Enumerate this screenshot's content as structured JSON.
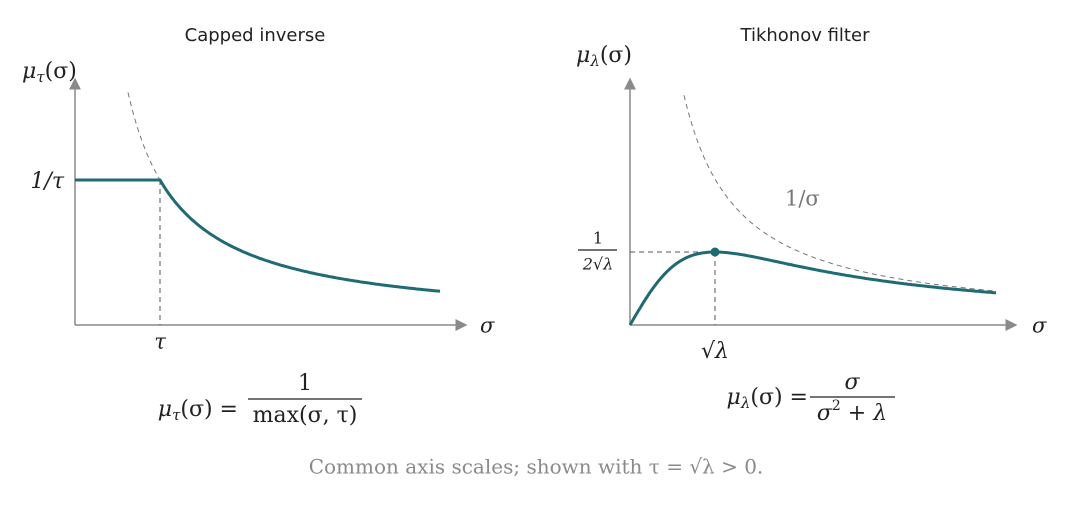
{
  "panels": [
    {
      "title": "Capped inverse",
      "y_label": {
        "base": "μ",
        "sub": "τ",
        "arg": "(σ)"
      },
      "x_label": "σ",
      "y_tick": "1/τ",
      "x_tick": "τ",
      "formula": {
        "lhs": {
          "base": "μ",
          "sub": "τ",
          "arg": "(σ) ="
        },
        "numerator": "1",
        "denominator": "max(σ, τ)"
      }
    },
    {
      "title": "Tikhonov filter",
      "y_label": {
        "base": "μ",
        "sub": "λ",
        "arg": "(σ)"
      },
      "x_label": "σ",
      "y_tick": {
        "numerator": "1",
        "denominator": "2√λ"
      },
      "x_tick": "√λ",
      "curve_label": "1/σ",
      "formula": {
        "lhs": {
          "base": "μ",
          "sub": "λ",
          "arg": "(σ) ="
        },
        "numerator": "σ",
        "denominator": {
          "base": "σ",
          "sup": "2",
          "rest": " + λ"
        }
      }
    }
  ],
  "caption": "Common axis scales; shown with τ = √λ > 0."
}
